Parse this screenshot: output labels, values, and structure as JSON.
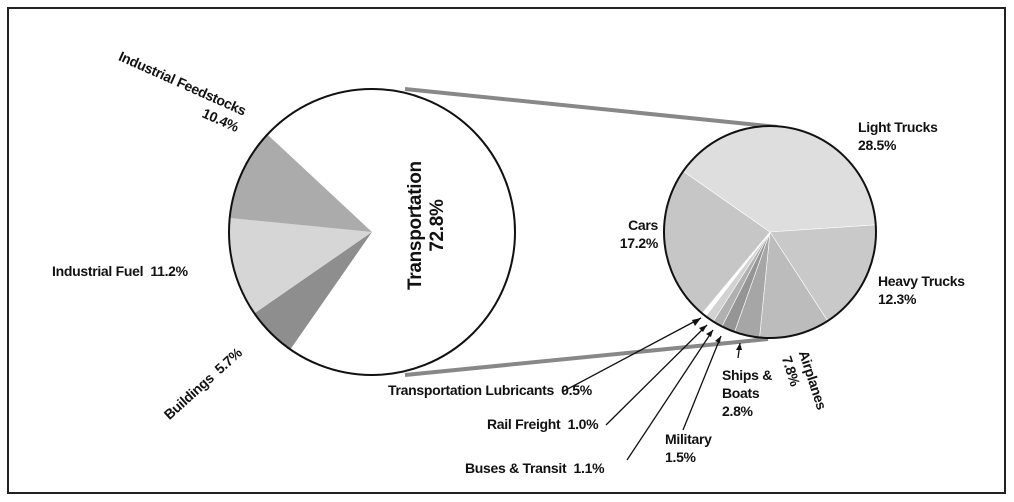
{
  "chart_data": [
    {
      "type": "pie",
      "categories": [
        "Transportation",
        "Buildings",
        "Industrial Fuel",
        "Industrial Feedstocks"
      ],
      "values": [
        72.8,
        5.7,
        11.2,
        10.4
      ],
      "value_labels": [
        "72.8%",
        "5.7%",
        "11.2%",
        "10.4%"
      ],
      "colors": [
        "#ffffff",
        "#8e8e8e",
        "#d6d6d6",
        "#ababab"
      ]
    },
    {
      "type": "pie",
      "categories": [
        "Light Trucks",
        "Heavy Trucks",
        "Airplanes",
        "Ships & Boats",
        "Military",
        "Buses & Transit",
        "Rail Freight",
        "Transportation Lubricants",
        "Cars"
      ],
      "values": [
        28.5,
        12.3,
        7.8,
        2.8,
        1.5,
        1.1,
        1.0,
        0.5,
        17.2
      ],
      "value_labels": [
        "28.5%",
        "12.3%",
        "7.8%",
        "2.8%",
        "1.5%",
        "1.1%",
        "1.0%",
        "0.5%",
        "17.2%"
      ],
      "colors": [
        "#dedede",
        "#c9c9c9",
        "#bcbcbc",
        "#a6a6a6",
        "#959595",
        "#b0b0b0",
        "#d2d2d2",
        "#ffffff",
        "#c6c6c6"
      ]
    }
  ]
}
